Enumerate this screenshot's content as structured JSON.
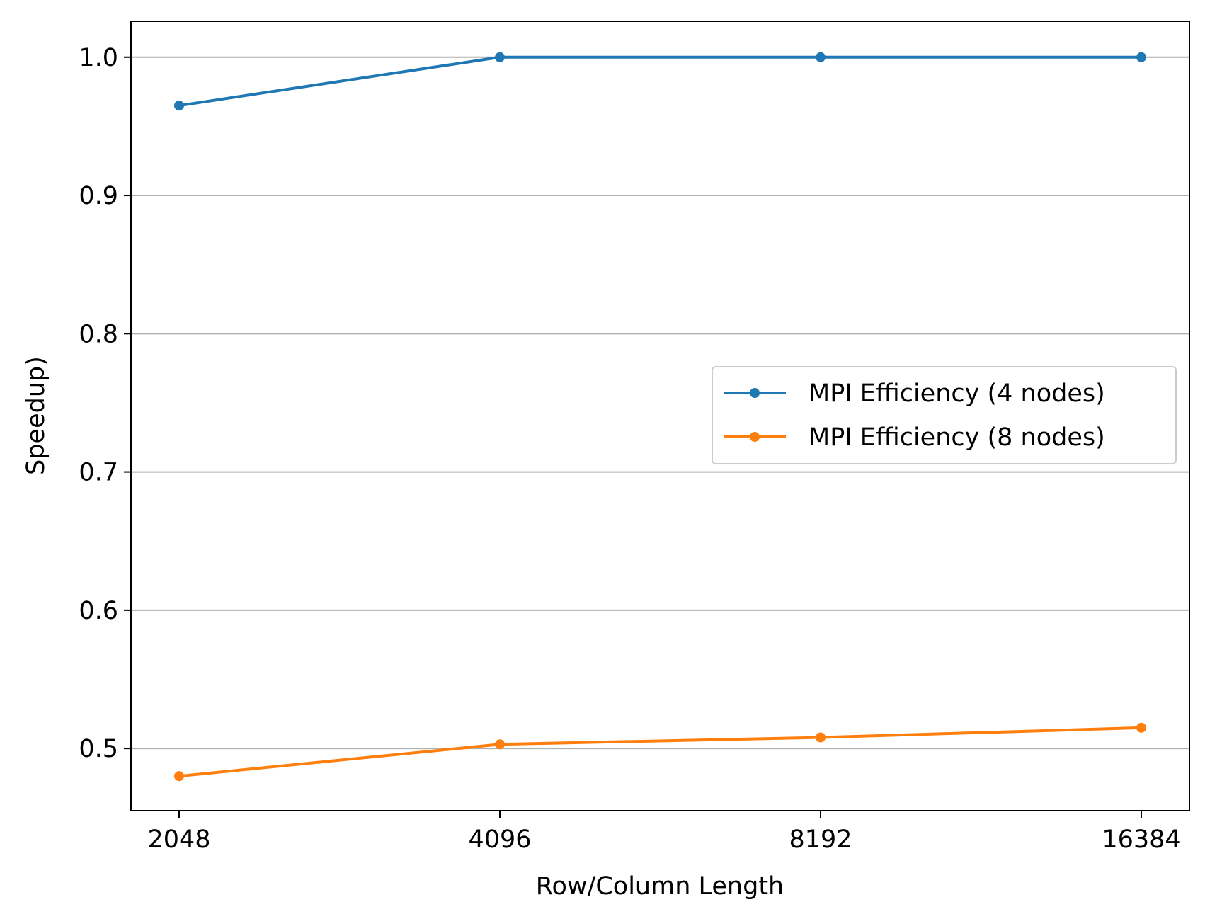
{
  "chart_data": {
    "type": "line",
    "title": "",
    "xlabel": "Row/Column Length",
    "ylabel": "Speedup)",
    "categories": [
      "2048",
      "4096",
      "8192",
      "16384"
    ],
    "x_scale": "log2",
    "ylim": [
      0.455,
      1.026
    ],
    "yticks": [
      0.5,
      0.6,
      0.7,
      0.8,
      0.9,
      1.0
    ],
    "ytick_labels": [
      "0.5",
      "0.6",
      "0.7",
      "0.8",
      "0.9",
      "1.0"
    ],
    "grid": "horizontal",
    "legend_position": "center-right",
    "series": [
      {
        "name": "MPI Efficiency (4 nodes)",
        "color": "#1f77b4",
        "marker": "circle",
        "values": [
          0.965,
          1.0,
          1.0,
          1.0
        ]
      },
      {
        "name": "MPI Efficiency (8 nodes)",
        "color": "#ff7f0e",
        "marker": "circle",
        "values": [
          0.48,
          0.503,
          0.508,
          0.515
        ]
      }
    ]
  }
}
